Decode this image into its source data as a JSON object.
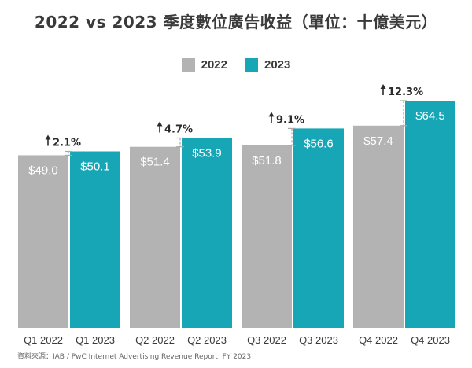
{
  "title": "2022 vs 2023 季度數位廣告收益（單位：十億美元）",
  "source": "資料來源：IAB / PwC Internet Advertising Revenue Report, FY 2023",
  "colors": {
    "2022": "#b3b3b3",
    "2023": "#16a6b6",
    "text": "#3a3a3a",
    "whisker": "#a8a8a8"
  },
  "chart_data": {
    "type": "bar",
    "title": "2022 vs 2023 季度數位廣告收益（單位：十億美元）",
    "xlabel": "",
    "ylabel": "",
    "ylim": [
      0,
      70
    ],
    "grid": false,
    "legend_position": "top-center",
    "groups": [
      "Q1",
      "Q2",
      "Q3",
      "Q4"
    ],
    "categories": [
      [
        "Q1 2022",
        "Q1 2023"
      ],
      [
        "Q2 2022",
        "Q2 2023"
      ],
      [
        "Q3 2022",
        "Q3 2023"
      ],
      [
        "Q4 2022",
        "Q4 2023"
      ]
    ],
    "series": [
      {
        "name": "2022",
        "values": [
          49.0,
          51.4,
          51.8,
          57.4
        ],
        "labels": [
          "$49.0",
          "$51.4",
          "$51.8",
          "$57.4"
        ]
      },
      {
        "name": "2023",
        "values": [
          50.1,
          53.9,
          56.6,
          64.5
        ],
        "labels": [
          "$50.1",
          "$53.9",
          "$56.6",
          "$64.5"
        ]
      }
    ],
    "growth": [
      "2.1%",
      "4.7%",
      "9.1%",
      "12.3%"
    ]
  }
}
